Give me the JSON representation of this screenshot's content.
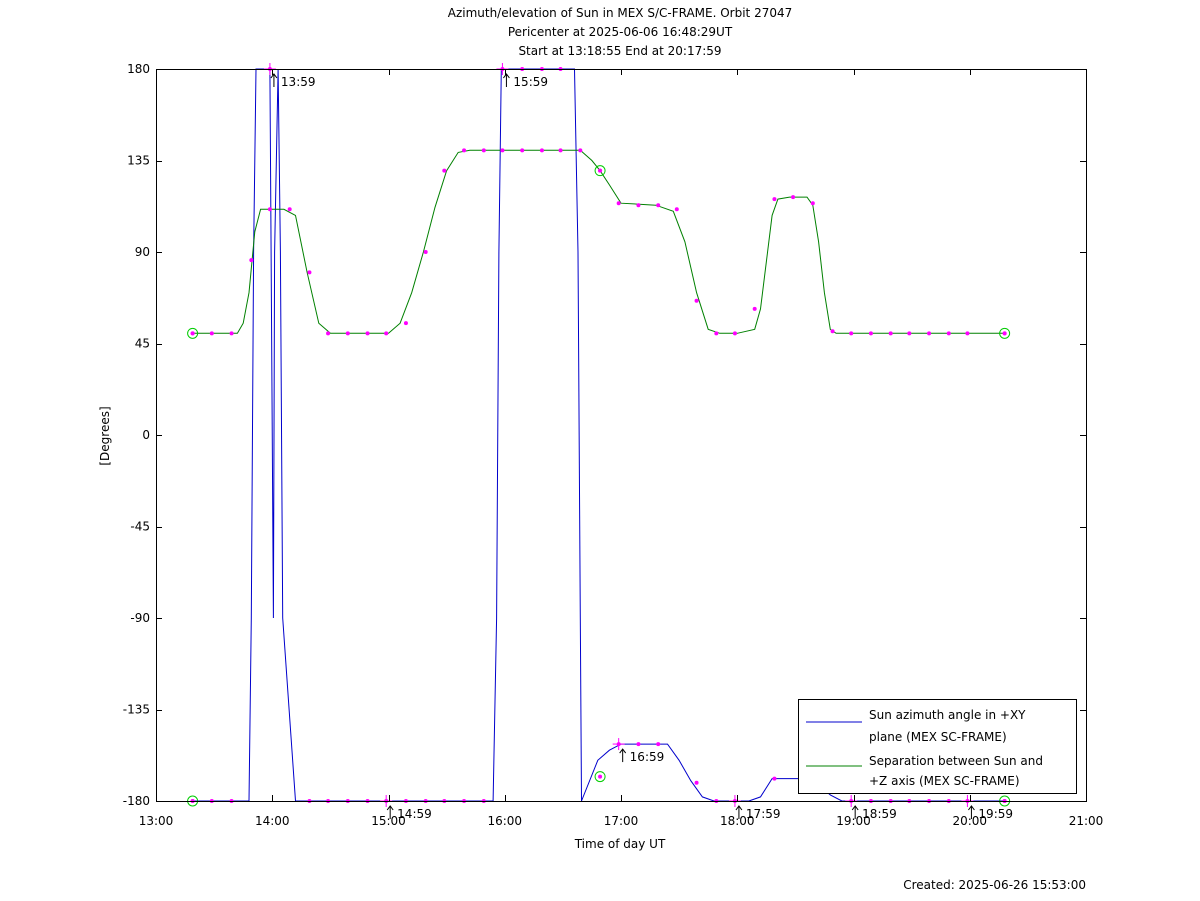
{
  "chart_data": {
    "type": "line",
    "title_lines": [
      "Azimuth/elevation of Sun in MEX S/C-FRAME.  Orbit 27047",
      "Pericenter at 2025-06-06 16:48:29UT",
      "Start at 13:18:55 End at 20:17:59"
    ],
    "xlabel": "Time of day UT",
    "ylabel": "[Degrees]",
    "footer": "Created: 2025-06-26 15:53:00",
    "xlim": [
      13.0,
      21.0
    ],
    "ylim": [
      -180,
      180
    ],
    "x_ticks": [
      {
        "v": 13,
        "label": "13:00"
      },
      {
        "v": 14,
        "label": "14:00"
      },
      {
        "v": 15,
        "label": "15:00"
      },
      {
        "v": 16,
        "label": "16:00"
      },
      {
        "v": 17,
        "label": "17:00"
      },
      {
        "v": 18,
        "label": "18:00"
      },
      {
        "v": 19,
        "label": "19:00"
      },
      {
        "v": 20,
        "label": "20:00"
      },
      {
        "v": 21,
        "label": "21:00"
      }
    ],
    "y_ticks": [
      {
        "v": 180,
        "label": "180"
      },
      {
        "v": 135,
        "label": "135"
      },
      {
        "v": 90,
        "label": "90"
      },
      {
        "v": 45,
        "label": "45"
      },
      {
        "v": 0,
        "label": "0"
      },
      {
        "v": -45,
        "label": "-45"
      },
      {
        "v": -90,
        "label": "-90"
      },
      {
        "v": -135,
        "label": "-135"
      },
      {
        "v": -180,
        "label": "-180"
      }
    ],
    "legend_position": "bottom-right",
    "series": [
      {
        "name": "Sun azimuth angle in +XY plane (MEX SC-FRAME)",
        "legend_lines": [
          "Sun azimuth angle in +XY",
          "plane (MEX SC-FRAME)"
        ],
        "color": "#0000cc",
        "x": [
          13.315,
          13.8,
          13.82,
          13.84,
          13.86,
          13.98,
          13.99,
          14.01,
          14.02,
          14.05,
          14.07,
          14.09,
          14.2,
          15.0,
          15.9,
          15.93,
          15.95,
          15.97,
          16.6,
          16.63,
          16.65,
          16.66,
          16.8,
          16.9,
          17.0,
          17.2,
          17.4,
          17.5,
          17.6,
          17.7,
          17.8,
          17.9,
          18.1,
          18.2,
          18.3,
          18.6,
          18.7,
          18.8,
          18.9,
          19.0,
          19.5,
          20.0,
          20.3
        ],
        "y": [
          -180,
          -180,
          -90,
          90,
          180,
          180,
          90,
          -90,
          90,
          180,
          90,
          -90,
          -180,
          -180,
          -180,
          -90,
          90,
          180,
          180,
          90,
          -90,
          -180,
          -160,
          -155,
          -152,
          -152,
          -152,
          -160,
          -170,
          -178,
          -180,
          -180,
          -180,
          -178,
          -169,
          -169,
          -172,
          -177,
          -180,
          -180,
          -180,
          -180,
          -180
        ]
      },
      {
        "name": "Separation between Sun and +Z axis (MEX SC-FRAME)",
        "legend_lines": [
          "Separation between Sun and",
          "+Z axis (MEX SC-FRAME)"
        ],
        "color": "#008000",
        "x": [
          13.315,
          13.4,
          13.55,
          13.7,
          13.75,
          13.8,
          13.85,
          13.9,
          14.0,
          14.1,
          14.2,
          14.3,
          14.4,
          14.5,
          15.0,
          15.1,
          15.2,
          15.3,
          15.4,
          15.5,
          15.6,
          15.7,
          16.0,
          16.5,
          16.65,
          16.75,
          16.82,
          16.9,
          17.0,
          17.3,
          17.45,
          17.55,
          17.65,
          17.75,
          17.85,
          18.0,
          18.15,
          18.2,
          18.25,
          18.3,
          18.35,
          18.45,
          18.6,
          18.65,
          18.7,
          18.75,
          18.8,
          18.85,
          19.0,
          20.3
        ],
        "y": [
          50,
          50,
          50,
          50,
          55,
          70,
          100,
          111,
          111,
          111,
          108,
          80,
          55,
          50,
          50,
          55,
          70,
          90,
          112,
          130,
          139,
          140,
          140,
          140,
          140,
          135,
          130,
          123,
          114,
          113,
          110,
          95,
          70,
          52,
          50,
          50,
          52,
          62,
          85,
          108,
          116,
          117,
          117,
          113,
          95,
          70,
          52,
          50,
          50,
          50
        ]
      }
    ],
    "markers": {
      "color": "#ff00ff",
      "green_series": {
        "x": [
          13.315,
          13.48,
          13.65,
          13.82,
          13.98,
          14.15,
          14.32,
          14.48,
          14.65,
          14.82,
          14.98,
          15.15,
          15.32,
          15.48,
          15.65,
          15.82,
          15.98,
          16.15,
          16.32,
          16.48,
          16.65,
          16.82,
          16.98,
          17.15,
          17.32,
          17.48,
          17.65,
          17.82,
          17.98,
          18.15,
          18.32,
          18.48,
          18.65,
          18.82,
          18.98,
          19.15,
          19.32,
          19.48,
          19.65,
          19.82,
          19.98,
          20.3
        ],
        "y": [
          50,
          50,
          50,
          86,
          111,
          111,
          80,
          50,
          50,
          50,
          50,
          55,
          90,
          130,
          140,
          140,
          140,
          140,
          140,
          140,
          140,
          130,
          114,
          113,
          113,
          111,
          66,
          50,
          50,
          62,
          116,
          117,
          114,
          51,
          50,
          50,
          50,
          50,
          50,
          50,
          50,
          50
        ]
      },
      "blue_series": {
        "x": [
          13.315,
          13.48,
          13.65,
          13.98,
          14.32,
          14.48,
          14.65,
          14.82,
          14.98,
          15.15,
          15.32,
          15.48,
          15.65,
          15.82,
          15.98,
          16.15,
          16.32,
          16.48,
          16.98,
          17.15,
          17.32,
          17.65,
          17.82,
          17.98,
          18.32,
          18.98,
          19.15,
          19.32,
          19.48,
          19.65,
          19.82,
          19.98,
          20.3
        ],
        "y": [
          -180,
          -180,
          -180,
          180,
          -180,
          -180,
          -180,
          -180,
          -180,
          -180,
          -180,
          -180,
          -180,
          -180,
          180,
          180,
          180,
          180,
          -152,
          -152,
          -152,
          -171,
          -180,
          -180,
          -169,
          -180,
          -180,
          -180,
          -180,
          -180,
          -180,
          -180,
          -180
        ]
      },
      "circles": [
        {
          "x": 13.315,
          "y": 50
        },
        {
          "x": 16.82,
          "y": 130
        },
        {
          "x": 20.3,
          "y": 50
        },
        {
          "x": 13.315,
          "y": -180
        },
        {
          "x": 16.82,
          "y": -168
        },
        {
          "x": 20.3,
          "y": -180
        }
      ]
    },
    "hour_annotations": [
      {
        "x": 13.98,
        "y": 180,
        "label": "13:59"
      },
      {
        "x": 14.98,
        "y": -180,
        "label": "14:59"
      },
      {
        "x": 15.98,
        "y": 180,
        "label": "15:59"
      },
      {
        "x": 16.98,
        "y": -152,
        "label": "16:59"
      },
      {
        "x": 17.98,
        "y": -180,
        "label": "17:59"
      },
      {
        "x": 18.98,
        "y": -180,
        "label": "18:59"
      },
      {
        "x": 19.98,
        "y": -180,
        "label": "19:59"
      }
    ]
  }
}
